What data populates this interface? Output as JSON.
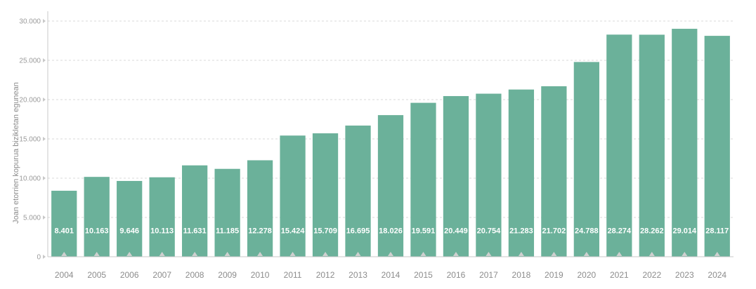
{
  "chart_data": {
    "type": "bar",
    "categories": [
      "2004",
      "2005",
      "2006",
      "2007",
      "2008",
      "2009",
      "2010",
      "2011",
      "2012",
      "2013",
      "2014",
      "2015",
      "2016",
      "2017",
      "2018",
      "2019",
      "2020",
      "2021",
      "2022",
      "2023",
      "2024"
    ],
    "values": [
      8401,
      10163,
      9646,
      10113,
      11631,
      11185,
      12278,
      15424,
      15709,
      16695,
      18026,
      19591,
      20449,
      20754,
      21283,
      21702,
      24788,
      28274,
      28262,
      29014,
      28117
    ],
    "data_labels": [
      "8.401",
      "10.163",
      "9.646",
      "10.113",
      "11.631",
      "11.185",
      "12.278",
      "15.424",
      "15.709",
      "16.695",
      "18.026",
      "19.591",
      "20.449",
      "20.754",
      "21.283",
      "21.702",
      "24.788",
      "28.274",
      "28.262",
      "29.014",
      "28.117"
    ],
    "title": "",
    "xlabel": "",
    "ylabel": "Joan etorrien kopurua bizikletan egunean",
    "ylim": [
      0,
      30000
    ],
    "yticks": [
      0,
      5000,
      10000,
      15000,
      20000,
      25000,
      30000
    ],
    "ytick_labels": [
      "0",
      "5.000",
      "10.000",
      "15.000",
      "20.000",
      "25.000",
      "30.000"
    ],
    "grid": true,
    "legend": "none",
    "bar_color": "#6bb19a",
    "label_color": "#ffffff",
    "grid_color": "#d8d8d8",
    "axis_text_color": "#8c8c8c"
  }
}
